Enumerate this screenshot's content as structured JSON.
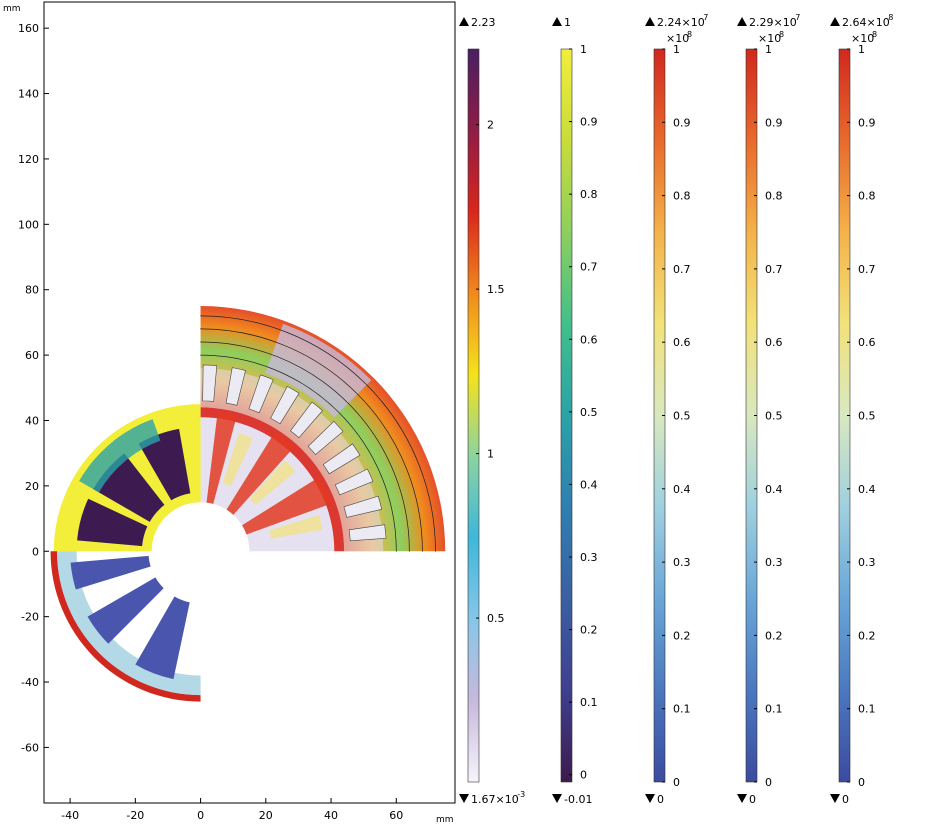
{
  "chart_data": {
    "type": "heatmap",
    "plot": {
      "x_unit": "mm",
      "y_unit": "mm",
      "xlim": [
        -48,
        78
      ],
      "ylim": [
        -77,
        168
      ],
      "x_ticks": [
        -40,
        -20,
        0,
        20,
        40,
        60
      ],
      "y_ticks": [
        -60,
        -40,
        -20,
        0,
        20,
        40,
        60,
        80,
        100,
        120,
        140,
        160
      ]
    },
    "colorbars": [
      {
        "colormap": "purple-to-white (magnetic flux density)",
        "max_label": "2.23",
        "min_label": "1.67×10",
        "min_exp": "-3",
        "max_value": 2.23,
        "min_value": 0.00167,
        "ticks": [
          0.5,
          1,
          1.5,
          2
        ],
        "colors": [
          "#f6f4fa",
          "#c7b9dc",
          "#86c6e8",
          "#3fb7d9",
          "#8dd3a0",
          "#f5e31a",
          "#f08a1e",
          "#d9261c",
          "#8e1d45",
          "#4a1f63"
        ]
      },
      {
        "colormap": "viridis-like (density)",
        "max_label": "1",
        "min_label": "-0.01",
        "max_value": 1,
        "min_value": -0.01,
        "ticks": [
          0,
          0.1,
          0.2,
          0.3,
          0.4,
          0.5,
          0.6,
          0.7,
          0.8,
          0.9,
          1
        ],
        "colors": [
          "#3d1a4f",
          "#3f3f8f",
          "#3a5fa2",
          "#2f7fb0",
          "#2aa3a8",
          "#42bf8a",
          "#8dcf5e",
          "#c8dc3a",
          "#f2ee3a"
        ]
      },
      {
        "colormap": "rainbow (stress)",
        "max_label": "2.24×10",
        "max_exp": "7",
        "scale_label": "×10",
        "scale_exp": "8",
        "min_label": "0",
        "max_value": 1,
        "min_value": 0,
        "ticks": [
          0,
          0.1,
          0.2,
          0.3,
          0.4,
          0.5,
          0.6,
          0.7,
          0.8,
          0.9,
          1
        ],
        "colors": [
          "#3b4ba0",
          "#4b78bf",
          "#6aa6d8",
          "#9fd0df",
          "#d8e8c0",
          "#f2e27a",
          "#f4b24a",
          "#e86a2c",
          "#d0281f"
        ]
      },
      {
        "colormap": "rainbow (stress)",
        "max_label": "2.29×10",
        "max_exp": "7",
        "scale_label": "×10",
        "scale_exp": "8",
        "min_label": "0",
        "max_value": 1,
        "min_value": 0,
        "ticks": [
          0,
          0.1,
          0.2,
          0.3,
          0.4,
          0.5,
          0.6,
          0.7,
          0.8,
          0.9,
          1
        ],
        "colors": [
          "#3b4ba0",
          "#4b78bf",
          "#6aa6d8",
          "#9fd0df",
          "#d8e8c0",
          "#f2e27a",
          "#f4b24a",
          "#e86a2c",
          "#d0281f"
        ]
      },
      {
        "colormap": "rainbow (stress)",
        "max_label": "2.64×10",
        "max_exp": "8",
        "scale_label": "×10",
        "scale_exp": "8",
        "min_label": "0",
        "max_value": 1,
        "min_value": 0,
        "ticks": [
          0,
          0.1,
          0.2,
          0.3,
          0.4,
          0.5,
          0.6,
          0.7,
          0.8,
          0.9,
          1
        ],
        "colors": [
          "#3b4ba0",
          "#4b78bf",
          "#6aa6d8",
          "#9fd0df",
          "#d8e8c0",
          "#f2e27a",
          "#f4b24a",
          "#e86a2c",
          "#d0281f"
        ]
      }
    ]
  }
}
